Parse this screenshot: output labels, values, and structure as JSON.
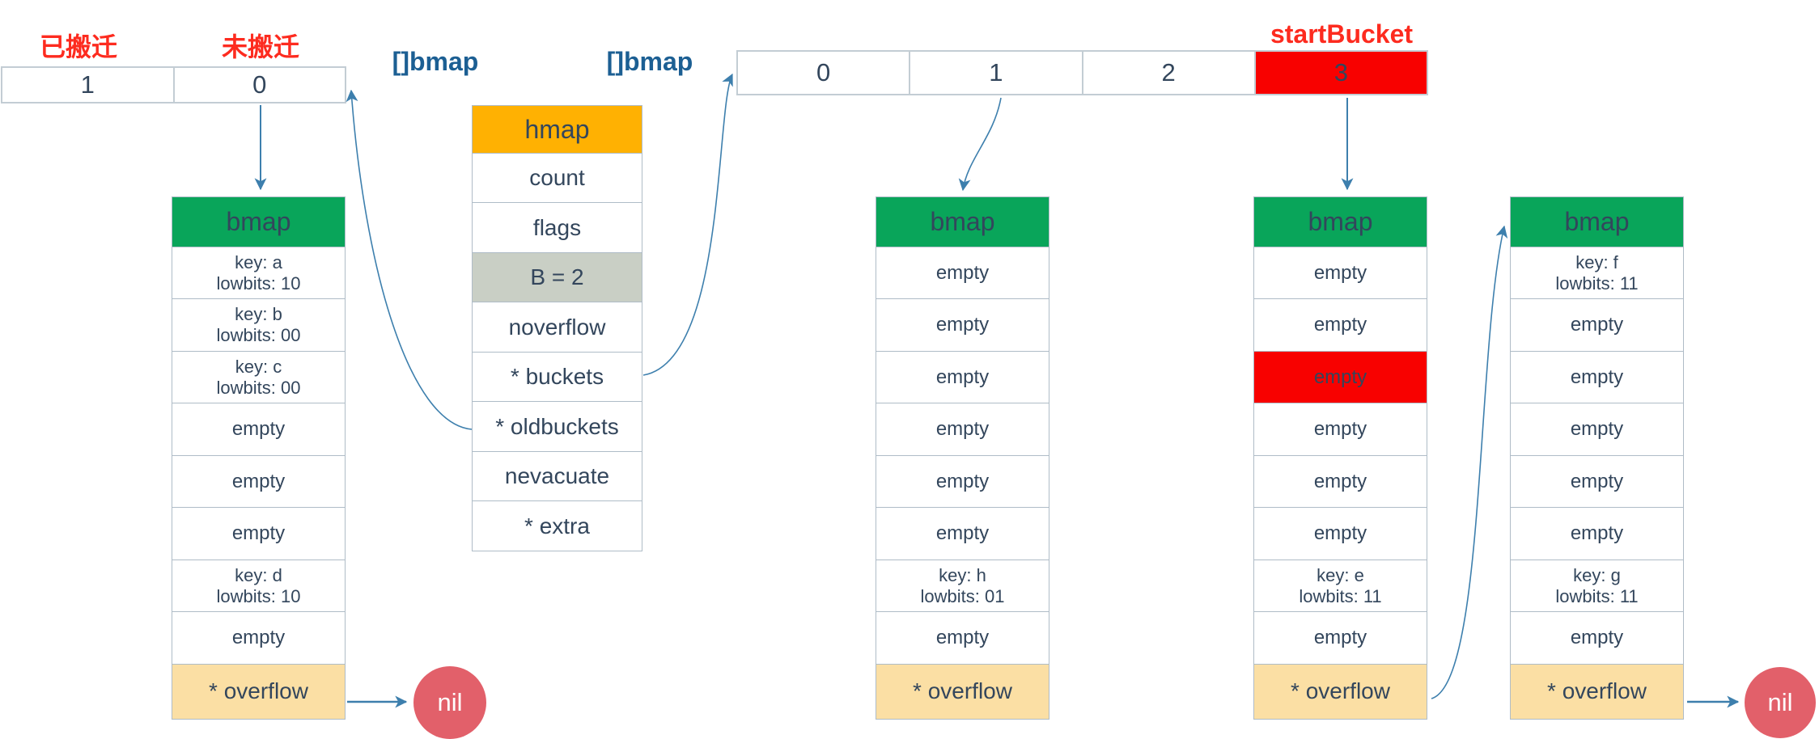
{
  "colors": {
    "header_orange": "#FFB102",
    "header_green": "#09A55A",
    "highlight_red": "#F80100",
    "label_red": "#FD2B1F",
    "overflow_tan": "#FBDFA4",
    "nil_circle_red": "#E2606A",
    "b_field_gray": "#C9CFC5",
    "arrow_blue": "#3D7FAD",
    "text_navy": "#33465C",
    "type_label_blue": "#1C5F93"
  },
  "old_buckets_panel": {
    "evacuated_label": "已搬迁",
    "not_evacuated_label": "未搬迁",
    "cells": [
      "1",
      "0"
    ]
  },
  "new_buckets_panel": {
    "start_bucket_label": "startBucket",
    "cells": [
      "0",
      "1",
      "2",
      "3"
    ],
    "highlight_cell": "3"
  },
  "type_labels": {
    "oldbuckets": "[]bmap",
    "buckets": "[]bmap"
  },
  "hmap_struct": {
    "title": "hmap",
    "fields": [
      {
        "label": "count"
      },
      {
        "label": "flags"
      },
      {
        "label": "B = 2",
        "highlight": true
      },
      {
        "label": "noverflow"
      },
      {
        "label": "* buckets"
      },
      {
        "label": "* oldbuckets"
      },
      {
        "label": "nevacuate"
      },
      {
        "label": "* extra"
      }
    ]
  },
  "buckets": [
    {
      "name": "oldbucket-0",
      "title": "bmap",
      "slots": [
        {
          "lines": [
            "key: a",
            "lowbits: 10"
          ]
        },
        {
          "lines": [
            "key: b",
            "lowbits: 00"
          ]
        },
        {
          "lines": [
            "key: c",
            "lowbits: 00"
          ]
        },
        {
          "lines": [
            "empty"
          ]
        },
        {
          "lines": [
            "empty"
          ]
        },
        {
          "lines": [
            "empty"
          ]
        },
        {
          "lines": [
            "key: d",
            "lowbits: 10"
          ]
        },
        {
          "lines": [
            "empty"
          ]
        }
      ],
      "overflow_label": "* overflow",
      "overflow_target": "nil"
    },
    {
      "name": "bucket-1",
      "title": "bmap",
      "slots": [
        {
          "lines": [
            "empty"
          ]
        },
        {
          "lines": [
            "empty"
          ]
        },
        {
          "lines": [
            "empty"
          ]
        },
        {
          "lines": [
            "empty"
          ]
        },
        {
          "lines": [
            "empty"
          ]
        },
        {
          "lines": [
            "empty"
          ]
        },
        {
          "lines": [
            "key: h",
            "lowbits: 01"
          ]
        },
        {
          "lines": [
            "empty"
          ]
        }
      ],
      "overflow_label": "* overflow",
      "overflow_target": ""
    },
    {
      "name": "bucket-3",
      "title": "bmap",
      "slots": [
        {
          "lines": [
            "empty"
          ]
        },
        {
          "lines": [
            "empty"
          ]
        },
        {
          "lines": [
            "empty"
          ],
          "highlight": true
        },
        {
          "lines": [
            "empty"
          ]
        },
        {
          "lines": [
            "empty"
          ]
        },
        {
          "lines": [
            "empty"
          ]
        },
        {
          "lines": [
            "key: e",
            "lowbits: 11"
          ]
        },
        {
          "lines": [
            "empty"
          ]
        }
      ],
      "overflow_label": "* overflow",
      "overflow_target": "overflow-bucket"
    },
    {
      "name": "overflow-bucket",
      "title": "bmap",
      "slots": [
        {
          "lines": [
            "key: f",
            "lowbits: 11"
          ]
        },
        {
          "lines": [
            "empty"
          ]
        },
        {
          "lines": [
            "empty"
          ]
        },
        {
          "lines": [
            "empty"
          ]
        },
        {
          "lines": [
            "empty"
          ]
        },
        {
          "lines": [
            "empty"
          ]
        },
        {
          "lines": [
            "key: g",
            "lowbits: 11"
          ]
        },
        {
          "lines": [
            "empty"
          ]
        }
      ],
      "overflow_label": "* overflow",
      "overflow_target": "nil"
    }
  ],
  "nil_labels": [
    "nil",
    "nil"
  ]
}
